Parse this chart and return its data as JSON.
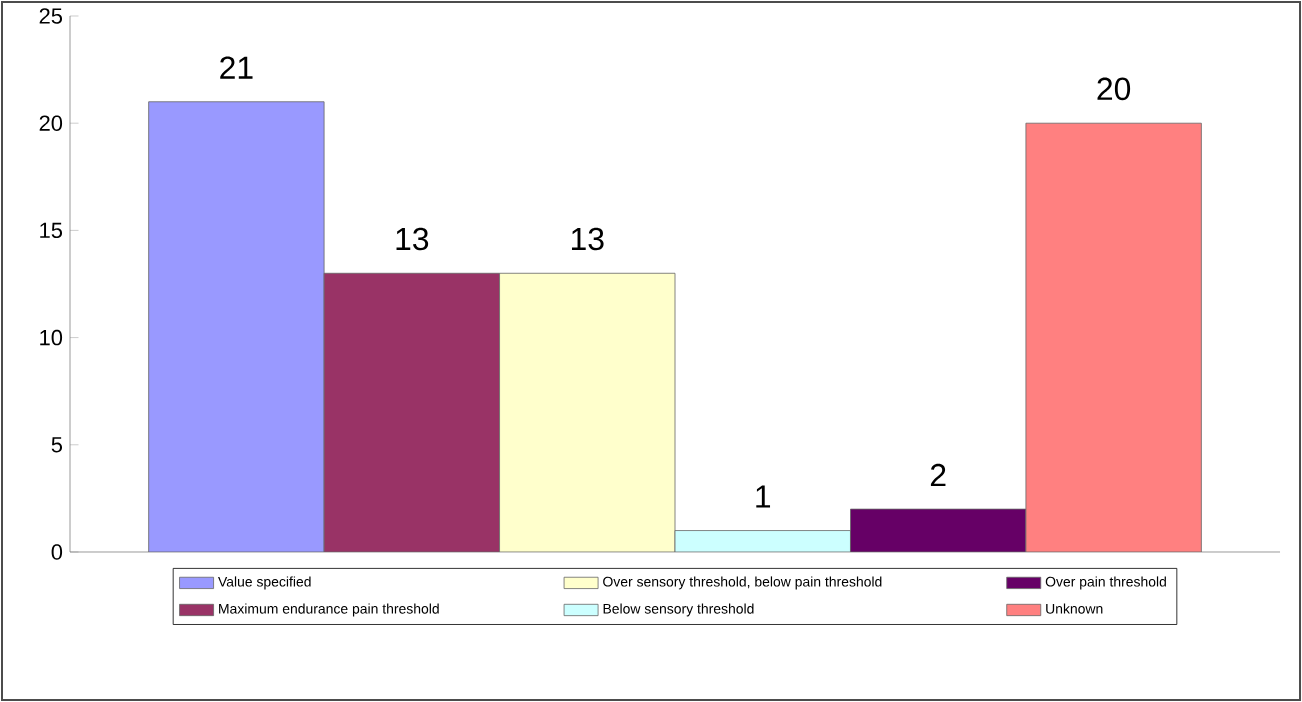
{
  "chart_data": {
    "type": "bar",
    "categories": [
      null
    ],
    "series": [
      {
        "name": "Value specified",
        "color": "#9999ff",
        "values": [
          21
        ]
      },
      {
        "name": "Maximum endurance pain threshold",
        "color": "#993366",
        "values": [
          13
        ]
      },
      {
        "name": "Over sensory threshold, below pain threshold",
        "color": "#ffffcc",
        "values": [
          13
        ]
      },
      {
        "name": "Below sensory threshold",
        "color": "#ccffff",
        "values": [
          1
        ]
      },
      {
        "name": "Over pain threshold",
        "color": "#660066",
        "values": [
          2
        ]
      },
      {
        "name": "Unknown",
        "color": "#ff8080",
        "values": [
          20
        ]
      }
    ],
    "ylim": [
      0,
      25
    ],
    "yticks": [
      0,
      5,
      10,
      15,
      20,
      25
    ],
    "data_labels": true,
    "legend": "bottom",
    "grid": false
  }
}
